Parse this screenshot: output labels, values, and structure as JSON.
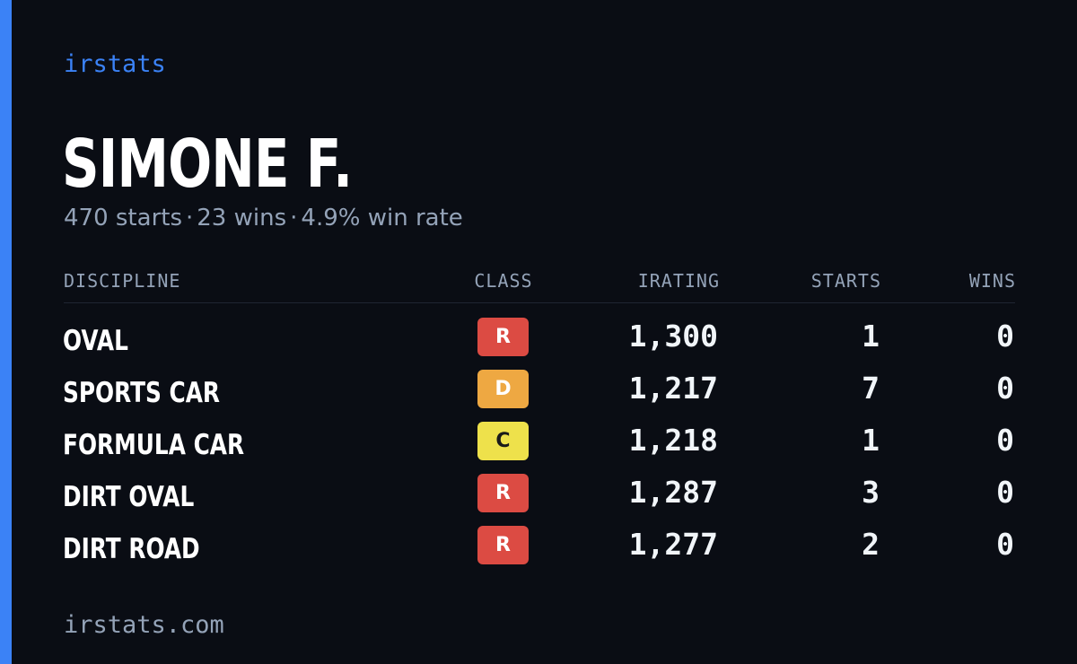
{
  "header": {
    "brand": "irstats",
    "name": "SIMONE F.",
    "summary": {
      "starts": "470 starts",
      "wins": "23 wins",
      "win_rate": "4.9% win rate",
      "separator": "·"
    }
  },
  "table": {
    "columns": {
      "discipline": "DISCIPLINE",
      "class": "CLASS",
      "irating": "IRATING",
      "starts": "STARTS",
      "wins": "WINS"
    },
    "rows": [
      {
        "discipline": "OVAL",
        "class": "R",
        "class_color": "#dc4b43",
        "class_text_color": "#ffffff",
        "irating": "1,300",
        "starts": "1",
        "wins": "0"
      },
      {
        "discipline": "SPORTS CAR",
        "class": "D",
        "class_color": "#eea842",
        "class_text_color": "#ffffff",
        "irating": "1,217",
        "starts": "7",
        "wins": "0"
      },
      {
        "discipline": "FORMULA CAR",
        "class": "C",
        "class_color": "#eee14b",
        "class_text_color": "#1a1a1a",
        "irating": "1,218",
        "starts": "1",
        "wins": "0"
      },
      {
        "discipline": "DIRT OVAL",
        "class": "R",
        "class_color": "#dc4b43",
        "class_text_color": "#ffffff",
        "irating": "1,287",
        "starts": "3",
        "wins": "0"
      },
      {
        "discipline": "DIRT ROAD",
        "class": "R",
        "class_color": "#dc4b43",
        "class_text_color": "#ffffff",
        "irating": "1,277",
        "starts": "2",
        "wins": "0"
      }
    ]
  },
  "footer": {
    "site": "irstats.com"
  },
  "colors": {
    "background": "#0a0d14",
    "accent": "#3b82f6",
    "muted": "#94a3b8"
  }
}
